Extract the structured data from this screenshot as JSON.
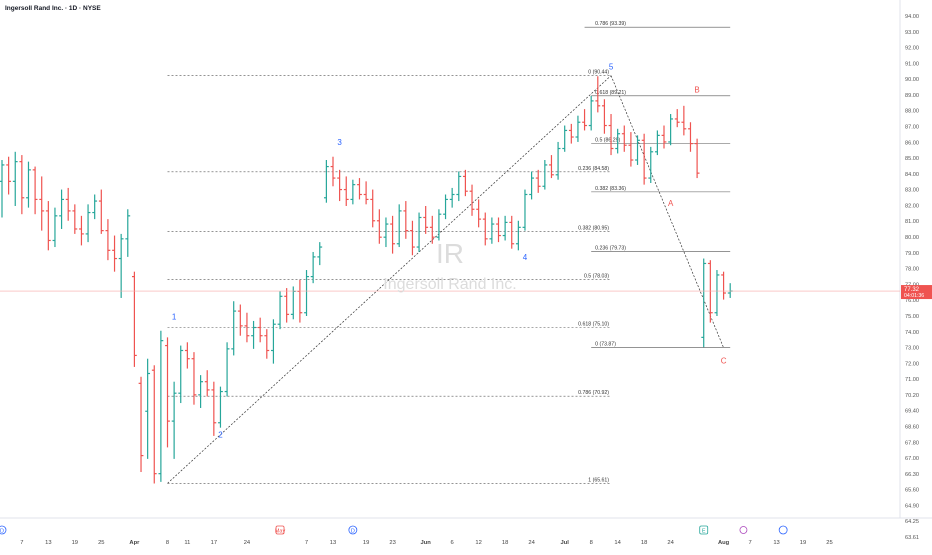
{
  "header": {
    "title": "Ingersoll Rand Inc. · 1D · NYSE"
  },
  "watermark": {
    "symbol": "IR",
    "name": "Ingersoll Rand Inc."
  },
  "price_tag": {
    "price": "77.32",
    "countdown": "04:01:36"
  },
  "colors": {
    "up": "#26a69a",
    "down": "#ef5350",
    "wave_primary": "#2962ff",
    "wave_correction": "#ef5350",
    "price_line": "#f7a9a7"
  },
  "chart_data": {
    "type": "ohlc",
    "title": "Ingersoll Rand Inc. · 1D · NYSE",
    "ylim": [
      63.5,
      94.8
    ],
    "y_ticks": [
      "94.00",
      "93.00",
      "92.00",
      "91.00",
      "90.00",
      "89.00",
      "88.00",
      "87.00",
      "86.00",
      "85.00",
      "84.00",
      "83.00",
      "82.00",
      "81.00",
      "80.00",
      "79.00",
      "78.00",
      "77.00",
      "76.00",
      "75.00",
      "74.00",
      "73.00",
      "72.00",
      "71.00",
      "70.20",
      "69.40",
      "68.60",
      "67.80",
      "67.00",
      "66.30",
      "65.60",
      "64.90",
      "64.25",
      "63.61"
    ],
    "x_ticks": [
      {
        "label": "D",
        "i": 0,
        "badge": "D"
      },
      {
        "label": "7",
        "i": 3
      },
      {
        "label": "13",
        "i": 7
      },
      {
        "label": "19",
        "i": 11
      },
      {
        "label": "25",
        "i": 15
      },
      {
        "label": "Apr",
        "i": 20
      },
      {
        "label": "8",
        "i": 25
      },
      {
        "label": "11",
        "i": 28
      },
      {
        "label": "17",
        "i": 32
      },
      {
        "label": "24",
        "i": 37
      },
      {
        "label": "May",
        "i": 42,
        "badge": "E"
      },
      {
        "label": "7",
        "i": 46
      },
      {
        "label": "13",
        "i": 50
      },
      {
        "label": "D",
        "i": 53,
        "badge": "D"
      },
      {
        "label": "19",
        "i": 55
      },
      {
        "label": "23",
        "i": 59
      },
      {
        "label": "Jun",
        "i": 64
      },
      {
        "label": "6",
        "i": 68
      },
      {
        "label": "12",
        "i": 72
      },
      {
        "label": "18",
        "i": 76
      },
      {
        "label": "24",
        "i": 80
      },
      {
        "label": "Jul",
        "i": 85
      },
      {
        "label": "8",
        "i": 89
      },
      {
        "label": "14",
        "i": 93
      },
      {
        "label": "18",
        "i": 97
      },
      {
        "label": "24",
        "i": 101
      },
      {
        "label": "E",
        "i": 106,
        "badge": "E"
      },
      {
        "label": "Aug",
        "i": 109
      },
      {
        "label": "7",
        "i": 113
      },
      {
        "label": "13",
        "i": 117
      },
      {
        "label": "19",
        "i": 121
      },
      {
        "label": "25",
        "i": 125
      }
    ],
    "fib_levels": [
      {
        "label": "0.786 (93.39)",
        "value": 93.39,
        "x0": 88,
        "x1": 110
      },
      {
        "label": "0.618 (89.21)",
        "value": 89.21,
        "x0": 89,
        "x1": 110
      },
      {
        "label": "0.5 (86.29)",
        "value": 86.29,
        "x0": 89,
        "x1": 110
      },
      {
        "label": "0.382 (83.36)",
        "value": 83.36,
        "x0": 89,
        "x1": 110
      },
      {
        "label": "0 (90.44)",
        "value": 90.44,
        "x0": 25,
        "x1": 92,
        "dashed": true
      },
      {
        "label": "0.236 (84.58)",
        "value": 84.58,
        "x0": 25,
        "x1": 92,
        "dashed": true
      },
      {
        "label": "0.382 (80.95)",
        "value": 80.95,
        "x0": 25,
        "x1": 92,
        "dashed": true
      },
      {
        "label": "0.236 (79.73)",
        "value": 79.73,
        "x0": 89,
        "x1": 110
      },
      {
        "label": "0.5 (78.03)",
        "value": 78.03,
        "x0": 25,
        "x1": 92,
        "dashed": true
      },
      {
        "label": "0.618 (75.10)",
        "value": 75.1,
        "x0": 25,
        "x1": 92,
        "dashed": true
      },
      {
        "label": "0 (73.87)",
        "value": 73.87,
        "x0": 89,
        "x1": 110
      },
      {
        "label": "0.786 (70.92)",
        "value": 70.92,
        "x0": 25,
        "x1": 92,
        "dashed": true
      },
      {
        "label": "1 (65.61)",
        "value": 65.61,
        "x0": 25,
        "x1": 92,
        "dashed": true
      }
    ],
    "wave_labels": [
      {
        "label": "1",
        "i": 26,
        "value": 75.6,
        "group": "impulse"
      },
      {
        "label": "2",
        "i": 33,
        "value": 68.4,
        "group": "impulse"
      },
      {
        "label": "3",
        "i": 51,
        "value": 86.2,
        "group": "impulse"
      },
      {
        "label": "4",
        "i": 79,
        "value": 79.2,
        "group": "impulse"
      },
      {
        "label": "5",
        "i": 92,
        "value": 90.8,
        "group": "impulse"
      },
      {
        "label": "A",
        "i": 101,
        "value": 82.5,
        "group": "correction"
      },
      {
        "label": "B",
        "i": 105,
        "value": 89.4,
        "group": "correction"
      },
      {
        "label": "C",
        "i": 109,
        "value": 72.9,
        "group": "correction"
      }
    ],
    "trend_lines": [
      {
        "from": [
          25,
          65.61
        ],
        "to": [
          92,
          90.44
        ]
      },
      {
        "from": [
          92,
          90.44
        ],
        "to": [
          109,
          73.87
        ]
      }
    ],
    "bars": [
      {
        "o": 84.0,
        "h": 85.3,
        "l": 81.8,
        "c": 85.0
      },
      {
        "o": 85.0,
        "h": 85.5,
        "l": 83.2,
        "c": 84.0
      },
      {
        "o": 84.0,
        "h": 85.8,
        "l": 82.5,
        "c": 85.2
      },
      {
        "o": 85.2,
        "h": 85.6,
        "l": 82.0,
        "c": 83.0
      },
      {
        "o": 83.0,
        "h": 85.2,
        "l": 82.4,
        "c": 84.7
      },
      {
        "o": 84.7,
        "h": 84.9,
        "l": 82.0,
        "c": 82.9
      },
      {
        "o": 82.9,
        "h": 84.3,
        "l": 81.0,
        "c": 82.2
      },
      {
        "o": 82.2,
        "h": 82.8,
        "l": 79.8,
        "c": 80.4
      },
      {
        "o": 80.4,
        "h": 82.4,
        "l": 80.0,
        "c": 81.9
      },
      {
        "o": 81.9,
        "h": 83.5,
        "l": 81.1,
        "c": 82.9
      },
      {
        "o": 82.9,
        "h": 83.6,
        "l": 81.6,
        "c": 82.2
      },
      {
        "o": 82.2,
        "h": 82.6,
        "l": 80.8,
        "c": 81.1
      },
      {
        "o": 81.1,
        "h": 81.9,
        "l": 80.1,
        "c": 80.8
      },
      {
        "o": 80.8,
        "h": 82.6,
        "l": 80.3,
        "c": 82.1
      },
      {
        "o": 82.1,
        "h": 83.2,
        "l": 81.7,
        "c": 82.8
      },
      {
        "o": 82.8,
        "h": 83.5,
        "l": 80.8,
        "c": 81.0
      },
      {
        "o": 81.0,
        "h": 81.7,
        "l": 79.2,
        "c": 79.8
      },
      {
        "o": 79.8,
        "h": 80.7,
        "l": 78.5,
        "c": 79.3
      },
      {
        "o": 79.3,
        "h": 80.8,
        "l": 76.9,
        "c": 80.5
      },
      {
        "o": 80.5,
        "h": 82.3,
        "l": 79.4,
        "c": 81.9
      },
      {
        "o": 78.2,
        "h": 78.5,
        "l": 72.7,
        "c": 73.4
      },
      {
        "o": 71.7,
        "h": 72.1,
        "l": 66.3,
        "c": 67.3
      },
      {
        "o": 70.0,
        "h": 73.2,
        "l": 67.1,
        "c": 72.3
      },
      {
        "o": 72.5,
        "h": 72.8,
        "l": 65.6,
        "c": 66.2
      },
      {
        "o": 66.2,
        "h": 74.9,
        "l": 65.7,
        "c": 74.3
      },
      {
        "o": 74.0,
        "h": 74.5,
        "l": 67.8,
        "c": 69.4
      },
      {
        "o": 69.4,
        "h": 71.8,
        "l": 67.1,
        "c": 71.1
      },
      {
        "o": 71.1,
        "h": 74.0,
        "l": 70.5,
        "c": 73.7
      },
      {
        "o": 73.7,
        "h": 74.2,
        "l": 72.6,
        "c": 73.2
      },
      {
        "o": 73.2,
        "h": 73.6,
        "l": 70.4,
        "c": 71.0
      },
      {
        "o": 71.0,
        "h": 72.2,
        "l": 70.2,
        "c": 71.8
      },
      {
        "o": 71.8,
        "h": 72.5,
        "l": 70.9,
        "c": 71.3
      },
      {
        "o": 71.3,
        "h": 71.8,
        "l": 68.5,
        "c": 69.3
      },
      {
        "o": 69.3,
        "h": 71.5,
        "l": 69.0,
        "c": 71.2
      },
      {
        "o": 71.2,
        "h": 74.2,
        "l": 70.9,
        "c": 73.8
      },
      {
        "o": 73.8,
        "h": 76.7,
        "l": 73.4,
        "c": 76.1
      },
      {
        "o": 76.1,
        "h": 76.5,
        "l": 74.6,
        "c": 75.2
      },
      {
        "o": 75.2,
        "h": 76.0,
        "l": 74.2,
        "c": 74.6
      },
      {
        "o": 74.6,
        "h": 75.5,
        "l": 73.8,
        "c": 75.1
      },
      {
        "o": 75.1,
        "h": 75.7,
        "l": 74.2,
        "c": 74.6
      },
      {
        "o": 74.6,
        "h": 75.0,
        "l": 73.2,
        "c": 73.7
      },
      {
        "o": 73.7,
        "h": 75.6,
        "l": 72.9,
        "c": 75.3
      },
      {
        "o": 75.3,
        "h": 77.3,
        "l": 75.0,
        "c": 77.0
      },
      {
        "o": 77.0,
        "h": 77.5,
        "l": 75.4,
        "c": 75.9
      },
      {
        "o": 75.9,
        "h": 77.6,
        "l": 75.6,
        "c": 77.3
      },
      {
        "o": 77.3,
        "h": 78.0,
        "l": 75.4,
        "c": 76.0
      },
      {
        "o": 76.0,
        "h": 78.6,
        "l": 75.8,
        "c": 78.2
      },
      {
        "o": 78.2,
        "h": 79.7,
        "l": 77.8,
        "c": 79.4
      },
      {
        "o": 79.4,
        "h": 80.3,
        "l": 78.9,
        "c": 80.0
      },
      {
        "o": 83.0,
        "h": 85.3,
        "l": 82.7,
        "c": 84.9
      },
      {
        "o": 84.9,
        "h": 85.5,
        "l": 83.7,
        "c": 84.2
      },
      {
        "o": 84.2,
        "h": 84.7,
        "l": 82.8,
        "c": 83.5
      },
      {
        "o": 83.5,
        "h": 84.3,
        "l": 82.5,
        "c": 82.9
      },
      {
        "o": 82.9,
        "h": 84.1,
        "l": 82.6,
        "c": 83.8
      },
      {
        "o": 83.8,
        "h": 84.2,
        "l": 82.9,
        "c": 83.2
      },
      {
        "o": 83.2,
        "h": 84.0,
        "l": 82.6,
        "c": 82.9
      },
      {
        "o": 82.9,
        "h": 83.5,
        "l": 81.2,
        "c": 81.6
      },
      {
        "o": 81.6,
        "h": 82.3,
        "l": 80.2,
        "c": 80.6
      },
      {
        "o": 80.6,
        "h": 81.8,
        "l": 80.0,
        "c": 81.4
      },
      {
        "o": 81.4,
        "h": 81.9,
        "l": 79.6,
        "c": 80.2
      },
      {
        "o": 80.2,
        "h": 82.6,
        "l": 80.0,
        "c": 82.2
      },
      {
        "o": 82.2,
        "h": 82.8,
        "l": 80.5,
        "c": 81.0
      },
      {
        "o": 81.0,
        "h": 81.6,
        "l": 79.5,
        "c": 80.0
      },
      {
        "o": 80.0,
        "h": 82.1,
        "l": 79.7,
        "c": 81.8
      },
      {
        "o": 81.8,
        "h": 82.5,
        "l": 80.8,
        "c": 81.2
      },
      {
        "o": 81.2,
        "h": 81.9,
        "l": 80.2,
        "c": 80.6
      },
      {
        "o": 80.6,
        "h": 82.3,
        "l": 80.4,
        "c": 82.0
      },
      {
        "o": 82.0,
        "h": 83.2,
        "l": 81.7,
        "c": 82.9
      },
      {
        "o": 82.9,
        "h": 83.6,
        "l": 82.4,
        "c": 83.2
      },
      {
        "o": 83.2,
        "h": 84.6,
        "l": 82.8,
        "c": 84.3
      },
      {
        "o": 84.3,
        "h": 84.7,
        "l": 83.1,
        "c": 83.4
      },
      {
        "o": 83.4,
        "h": 83.8,
        "l": 81.9,
        "c": 82.3
      },
      {
        "o": 82.3,
        "h": 82.9,
        "l": 81.2,
        "c": 81.7
      },
      {
        "o": 81.7,
        "h": 82.1,
        "l": 80.1,
        "c": 80.5
      },
      {
        "o": 80.5,
        "h": 81.8,
        "l": 80.2,
        "c": 81.4
      },
      {
        "o": 81.4,
        "h": 81.8,
        "l": 80.3,
        "c": 80.7
      },
      {
        "o": 80.7,
        "h": 81.9,
        "l": 80.4,
        "c": 81.5
      },
      {
        "o": 81.5,
        "h": 81.9,
        "l": 79.9,
        "c": 80.2
      },
      {
        "o": 80.2,
        "h": 81.6,
        "l": 79.8,
        "c": 81.2
      },
      {
        "o": 81.2,
        "h": 83.5,
        "l": 81.0,
        "c": 83.2
      },
      {
        "o": 83.2,
        "h": 84.6,
        "l": 82.9,
        "c": 84.2
      },
      {
        "o": 84.2,
        "h": 84.7,
        "l": 83.3,
        "c": 83.7
      },
      {
        "o": 83.7,
        "h": 85.3,
        "l": 83.5,
        "c": 85.0
      },
      {
        "o": 85.0,
        "h": 85.6,
        "l": 84.2,
        "c": 84.4
      },
      {
        "o": 84.4,
        "h": 86.4,
        "l": 84.1,
        "c": 86.0
      },
      {
        "o": 86.0,
        "h": 87.4,
        "l": 85.8,
        "c": 87.1
      },
      {
        "o": 87.1,
        "h": 87.5,
        "l": 86.3,
        "c": 86.7
      },
      {
        "o": 86.7,
        "h": 88.0,
        "l": 86.4,
        "c": 87.6
      },
      {
        "o": 87.6,
        "h": 88.4,
        "l": 87.1,
        "c": 87.4
      },
      {
        "o": 87.4,
        "h": 89.2,
        "l": 87.1,
        "c": 88.9
      },
      {
        "o": 88.9,
        "h": 90.4,
        "l": 88.2,
        "c": 88.6
      },
      {
        "o": 88.6,
        "h": 89.0,
        "l": 86.9,
        "c": 87.4
      },
      {
        "o": 87.4,
        "h": 88.1,
        "l": 85.6,
        "c": 86.0
      },
      {
        "o": 86.0,
        "h": 87.2,
        "l": 85.7,
        "c": 86.9
      },
      {
        "o": 86.9,
        "h": 87.4,
        "l": 85.8,
        "c": 86.2
      },
      {
        "o": 86.2,
        "h": 87.0,
        "l": 84.9,
        "c": 85.3
      },
      {
        "o": 85.3,
        "h": 86.8,
        "l": 85.0,
        "c": 86.5
      },
      {
        "o": 86.5,
        "h": 86.9,
        "l": 83.8,
        "c": 84.2
      },
      {
        "o": 84.2,
        "h": 86.1,
        "l": 83.9,
        "c": 85.8
      },
      {
        "o": 85.8,
        "h": 87.1,
        "l": 85.6,
        "c": 86.8
      },
      {
        "o": 86.8,
        "h": 87.4,
        "l": 86.0,
        "c": 86.4
      },
      {
        "o": 86.4,
        "h": 88.1,
        "l": 86.2,
        "c": 87.8
      },
      {
        "o": 87.8,
        "h": 88.4,
        "l": 87.3,
        "c": 87.6
      },
      {
        "o": 87.6,
        "h": 88.6,
        "l": 86.8,
        "c": 87.2
      },
      {
        "o": 87.2,
        "h": 87.6,
        "l": 85.8,
        "c": 86.3
      },
      {
        "o": 86.3,
        "h": 86.6,
        "l": 84.2,
        "c": 84.5
      },
      {
        "o": 74.5,
        "h": 79.3,
        "l": 73.9,
        "c": 79.0
      },
      {
        "o": 79.0,
        "h": 79.2,
        "l": 75.4,
        "c": 76.0
      },
      {
        "o": 76.0,
        "h": 78.6,
        "l": 75.8,
        "c": 78.3
      },
      {
        "o": 78.3,
        "h": 78.5,
        "l": 76.8,
        "c": 77.2
      },
      {
        "o": 77.2,
        "h": 77.8,
        "l": 76.9,
        "c": 77.32
      }
    ]
  }
}
